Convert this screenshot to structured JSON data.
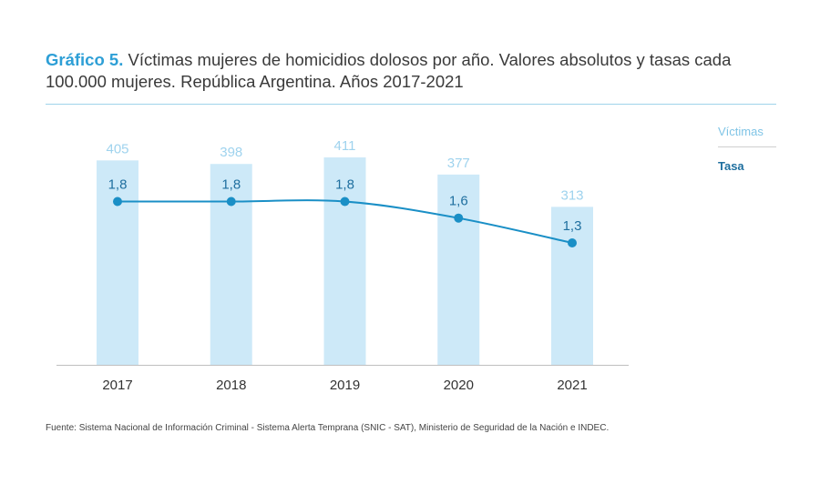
{
  "header": {
    "title_label": "Gráfico 5.",
    "title_text": " Víctimas mujeres de homicidios dolosos por año. Valores absolutos y tasas cada 100.000 mujeres. República Argentina. Años 2017-2021"
  },
  "legend": {
    "victimas": "Víctimas",
    "tasa": "Tasa"
  },
  "source": "Fuente: Sistema Nacional de Información Criminal - Sistema Alerta Temprana (SNIC - SAT), Ministerio de Seguridad de la Nación e INDEC.",
  "colors": {
    "bar": "#cde9f8",
    "bar_label": "#9fd3ee",
    "line": "#1a8fc6",
    "rate_label": "#1f6f9f",
    "axis": "#bfbfbf",
    "tick_label": "#333333"
  },
  "chart_data": {
    "type": "bar",
    "categories": [
      "2017",
      "2018",
      "2019",
      "2020",
      "2021"
    ],
    "series": [
      {
        "name": "Víctimas",
        "type": "bar",
        "values": [
          405,
          398,
          411,
          377,
          313
        ],
        "labels": [
          "405",
          "398",
          "411",
          "377",
          "313"
        ]
      },
      {
        "name": "Tasa",
        "type": "line",
        "values": [
          1.8,
          1.8,
          1.8,
          1.6,
          1.3
        ],
        "labels": [
          "1,8",
          "1,8",
          "1,8",
          "1,6",
          "1,3"
        ]
      }
    ],
    "ylim": [
      0,
      411
    ],
    "ylim_rate": [
      0,
      2.6
    ]
  }
}
